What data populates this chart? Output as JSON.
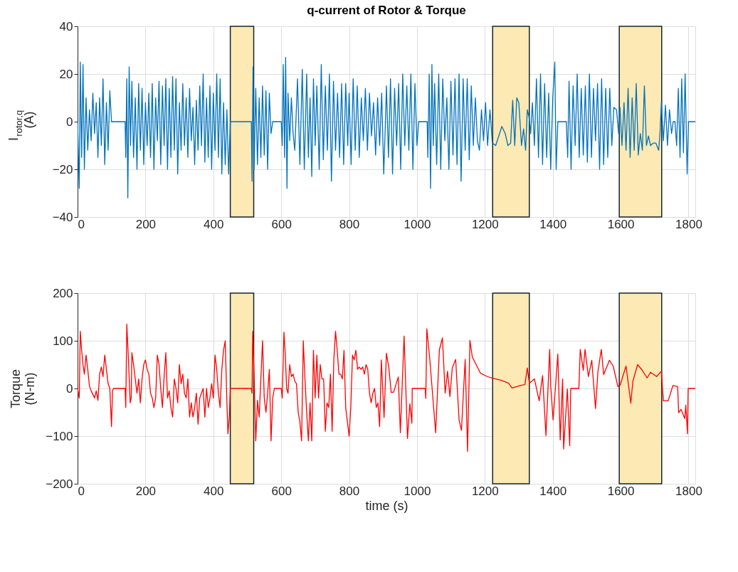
{
  "chart_data": [
    {
      "type": "line",
      "title": "q-current of Rotor & Torque",
      "ylabel": "I$_{rotor,q}$\n(A)",
      "xlim": [
        0,
        1820
      ],
      "xticks": [
        0,
        200,
        400,
        600,
        800,
        1000,
        1200,
        1400,
        1600,
        1800
      ],
      "ylim": [
        -40,
        40
      ],
      "yticks": [
        -40,
        -20,
        0,
        20,
        40
      ],
      "grid": true,
      "bands": [
        {
          "axis": "x",
          "from": 450,
          "to": 519,
          "color": "#fde9b3"
        },
        {
          "axis": "x",
          "from": 1223,
          "to": 1331,
          "color": "#fde9b3"
        },
        {
          "axis": "x",
          "from": 1596,
          "to": 1721,
          "color": "#fde9b3"
        }
      ],
      "series": [
        {
          "color": "#0072bd",
          "x": [
            0,
            5,
            8,
            12,
            16,
            20,
            25,
            30,
            35,
            40,
            45,
            50,
            55,
            60,
            65,
            70,
            75,
            80,
            85,
            90,
            95,
            100,
            140,
            142,
            145,
            148,
            152,
            156,
            160,
            165,
            170,
            175,
            180,
            185,
            190,
            195,
            200,
            205,
            210,
            215,
            220,
            225,
            230,
            235,
            240,
            245,
            250,
            255,
            260,
            265,
            270,
            275,
            280,
            285,
            290,
            295,
            300,
            305,
            310,
            315,
            320,
            325,
            330,
            335,
            340,
            345,
            350,
            355,
            360,
            365,
            370,
            375,
            380,
            385,
            390,
            395,
            400,
            405,
            410,
            415,
            420,
            425,
            430,
            435,
            440,
            445,
            450,
            512,
            514,
            517,
            520,
            525,
            530,
            535,
            540,
            545,
            550,
            555,
            560,
            565,
            570,
            575,
            600,
            603,
            606,
            610,
            613,
            617,
            620,
            625,
            630,
            635,
            640,
            648,
            655,
            662,
            668,
            675,
            680,
            685,
            690,
            695,
            700,
            705,
            712,
            718,
            724,
            730,
            736,
            742,
            748,
            754,
            760,
            766,
            772,
            778,
            784,
            790,
            796,
            800,
            806,
            812,
            818,
            824,
            830,
            836,
            842,
            848,
            854,
            860,
            866,
            872,
            878,
            884,
            890,
            896,
            902,
            906,
            910,
            916,
            922,
            928,
            934,
            940,
            946,
            952,
            958,
            964,
            970,
            976,
            982,
            988,
            994,
            1000,
            1005,
            1030,
            1032,
            1036,
            1040,
            1044,
            1048,
            1052,
            1058,
            1064,
            1070,
            1076,
            1082,
            1088,
            1094,
            1100,
            1106,
            1112,
            1118,
            1124,
            1130,
            1136,
            1142,
            1148,
            1154,
            1160,
            1166,
            1172,
            1178,
            1184,
            1190,
            1196,
            1202,
            1208,
            1215,
            1222,
            1232,
            1250,
            1260,
            1268,
            1276,
            1282,
            1288,
            1294,
            1300,
            1308,
            1314,
            1320,
            1325,
            1330,
            1335,
            1340,
            1346,
            1352,
            1358,
            1364,
            1370,
            1376,
            1382,
            1388,
            1394,
            1400,
            1406,
            1410,
            1415,
            1440,
            1444,
            1448,
            1454,
            1460,
            1466,
            1472,
            1478,
            1484,
            1490,
            1496,
            1502,
            1508,
            1514,
            1520,
            1526,
            1532,
            1538,
            1544,
            1550,
            1556,
            1562,
            1568,
            1574,
            1580,
            1588,
            1594,
            1598,
            1604,
            1610,
            1616,
            1622,
            1628,
            1634,
            1640,
            1646,
            1652,
            1658,
            1664,
            1670,
            1676,
            1682,
            1688,
            1696,
            1704,
            1712,
            1716,
            1720,
            1726,
            1732,
            1738,
            1744,
            1750,
            1755,
            1760,
            1765,
            1770,
            1775,
            1780,
            1785,
            1790,
            1796,
            1800,
            1820
          ],
          "values": [
            0,
            -28,
            25,
            -15,
            24,
            -20,
            10,
            -12,
            5,
            -8,
            12,
            -5,
            8,
            -15,
            10,
            -10,
            18,
            -18,
            8,
            -12,
            13,
            0,
            0,
            -15,
            18,
            -32,
            23,
            -10,
            17,
            -15,
            10,
            -20,
            16,
            -12,
            14,
            -18,
            8,
            -10,
            12,
            -15,
            16,
            -20,
            10,
            -8,
            17,
            -18,
            15,
            -10,
            18,
            -20,
            14,
            -15,
            19,
            -12,
            18,
            -22,
            8,
            -12,
            16,
            -10,
            10,
            -15,
            14,
            -8,
            6,
            -18,
            9,
            -12,
            15,
            -10,
            20,
            -17,
            10,
            -15,
            15,
            -20,
            12,
            -12,
            20,
            -15,
            18,
            -22,
            8,
            -18,
            5,
            -22,
            0,
            0,
            -25,
            23,
            -20,
            14,
            -18,
            10,
            -15,
            15,
            -14,
            13,
            -20,
            12,
            -5,
            0,
            0,
            -10,
            24,
            -15,
            27,
            -28,
            12,
            -8,
            10,
            -5,
            -12,
            18,
            -18,
            22,
            -20,
            20,
            -15,
            10,
            -23,
            18,
            -10,
            15,
            -20,
            24,
            -16,
            15,
            -12,
            20,
            -25,
            17,
            -12,
            12,
            -15,
            16,
            -18,
            16,
            -10,
            12,
            -18,
            18,
            -12,
            15,
            -15,
            10,
            -8,
            14,
            -12,
            12,
            -6,
            8,
            -14,
            10,
            -10,
            12,
            -22,
            -5,
            15,
            -15,
            18,
            -22,
            14,
            -10,
            16,
            -20,
            20,
            -10,
            15,
            -12,
            20,
            -20,
            16,
            -10,
            0,
            0,
            -15,
            20,
            -28,
            24,
            -10,
            16,
            -18,
            20,
            -20,
            18,
            -8,
            10,
            -20,
            17,
            -14,
            18,
            -18,
            20,
            -25,
            18,
            -12,
            18,
            -16,
            15,
            -10,
            10,
            -8,
            -12,
            5,
            -8,
            8,
            -10,
            5,
            -9,
            -10,
            -2,
            -5,
            -10,
            -9,
            9,
            -10,
            10,
            8,
            -10,
            -3,
            -12,
            5,
            2,
            -5,
            8,
            -10,
            18,
            -15,
            20,
            -18,
            16,
            -15,
            12,
            -20,
            10,
            25,
            -20,
            0,
            0,
            -15,
            17,
            -20,
            15,
            -10,
            20,
            -15,
            14,
            -14,
            15,
            -17,
            20,
            -15,
            14,
            -8,
            16,
            -20,
            18,
            -18,
            14,
            -15,
            14,
            -10,
            6,
            5,
            -5,
            6,
            -10,
            8,
            -12,
            14,
            -15,
            10,
            -12,
            16,
            -14,
            -5,
            -12,
            15,
            -10,
            -6,
            -10,
            -9,
            -9,
            -12,
            -5,
            8,
            -8,
            7,
            -10,
            5,
            -5,
            0,
            0,
            -10,
            14,
            -15,
            18,
            -13,
            20,
            -22,
            0,
            0
          ]
        }
      ]
    },
    {
      "type": "line",
      "xlabel": "time (s)",
      "ylabel": "Torque\n(N-m)",
      "xlim": [
        0,
        1820
      ],
      "xticks": [
        0,
        200,
        400,
        600,
        800,
        1000,
        1200,
        1400,
        1600,
        1800
      ],
      "ylim": [
        -200,
        200
      ],
      "yticks": [
        -200,
        -100,
        0,
        100,
        200
      ],
      "grid": true,
      "bands": [
        {
          "axis": "x",
          "from": 450,
          "to": 519,
          "color": "#fde9b3"
        },
        {
          "axis": "x",
          "from": 1223,
          "to": 1331,
          "color": "#fde9b3"
        },
        {
          "axis": "x",
          "from": 1596,
          "to": 1721,
          "color": "#fde9b3"
        }
      ],
      "series": [
        {
          "color": "#ff0000",
          "x": [
            0,
            5,
            8,
            12,
            16,
            20,
            25,
            30,
            35,
            40,
            50,
            55,
            60,
            65,
            70,
            75,
            80,
            85,
            90,
            95,
            100,
            103,
            106,
            140,
            142,
            145,
            150,
            155,
            158,
            160,
            165,
            170,
            175,
            180,
            185,
            190,
            195,
            200,
            205,
            210,
            215,
            220,
            225,
            230,
            235,
            240,
            245,
            250,
            255,
            260,
            265,
            270,
            275,
            280,
            285,
            290,
            295,
            300,
            305,
            310,
            315,
            320,
            325,
            330,
            335,
            340,
            345,
            350,
            355,
            360,
            365,
            370,
            375,
            380,
            385,
            390,
            395,
            400,
            405,
            410,
            415,
            420,
            425,
            430,
            435,
            440,
            443,
            447,
            450,
            512,
            514,
            516,
            520,
            525,
            530,
            535,
            540,
            545,
            550,
            555,
            560,
            565,
            570,
            575,
            580,
            600,
            603,
            608,
            612,
            616,
            620,
            625,
            630,
            635,
            640,
            645,
            650,
            655,
            660,
            665,
            670,
            675,
            680,
            685,
            690,
            695,
            700,
            705,
            710,
            715,
            720,
            725,
            730,
            735,
            740,
            745,
            750,
            755,
            760,
            765,
            770,
            775,
            780,
            785,
            790,
            795,
            800,
            805,
            810,
            815,
            820,
            825,
            830,
            835,
            840,
            845,
            850,
            855,
            860,
            865,
            870,
            875,
            880,
            885,
            890,
            895,
            903,
            910,
            917,
            924,
            931,
            945,
            951,
            962,
            972,
            979,
            985,
            986,
            1024,
            1026,
            1029,
            1038,
            1055,
            1066,
            1075,
            1083,
            1090,
            1097,
            1104,
            1114,
            1124,
            1131,
            1142,
            1149,
            1156,
            1163,
            1187,
            1207,
            1221,
            1249,
            1270,
            1280,
            1304,
            1318,
            1325,
            1331,
            1346,
            1360,
            1370,
            1380,
            1391,
            1394,
            1401,
            1415,
            1422,
            1429,
            1432,
            1443,
            1450,
            1453,
            1477,
            1481,
            1490,
            1495,
            1505,
            1515,
            1526,
            1533,
            1543,
            1550,
            1567,
            1578,
            1592,
            1598,
            1616,
            1630,
            1636,
            1650,
            1664,
            1678,
            1688,
            1706,
            1720,
            1726,
            1740,
            1754,
            1768,
            1771,
            1778,
            1789,
            1792,
            1797,
            1799,
            1820
          ],
          "values": [
            0,
            -20,
            120,
            80,
            50,
            30,
            70,
            40,
            5,
            -5,
            -20,
            -5,
            -25,
            30,
            45,
            25,
            70,
            40,
            10,
            0,
            -80,
            -5,
            0,
            0,
            -40,
            135,
            60,
            -30,
            -20,
            75,
            50,
            20,
            -10,
            20,
            -30,
            20,
            50,
            60,
            40,
            30,
            -10,
            -20,
            -40,
            -20,
            70,
            50,
            0,
            -40,
            25,
            75,
            -20,
            -5,
            -40,
            -60,
            20,
            0,
            -30,
            50,
            10,
            30,
            -10,
            -20,
            20,
            -60,
            -30,
            -60,
            -40,
            -10,
            -75,
            -20,
            -10,
            0,
            -60,
            0,
            -40,
            -20,
            10,
            -20,
            70,
            40,
            -10,
            -40,
            40,
            80,
            100,
            -30,
            -95,
            -60,
            0,
            0,
            -10,
            120,
            30,
            -110,
            -25,
            -60,
            20,
            100,
            -20,
            -50,
            -10,
            40,
            -110,
            -20,
            0,
            0,
            -20,
            118,
            70,
            0,
            -10,
            50,
            25,
            30,
            15,
            10,
            -50,
            -70,
            -110,
            100,
            20,
            -50,
            -110,
            -30,
            -110,
            80,
            -20,
            70,
            -20,
            50,
            20,
            20,
            -90,
            -30,
            -40,
            30,
            -90,
            60,
            120,
            80,
            30,
            30,
            20,
            80,
            -40,
            -70,
            -100,
            -40,
            70,
            60,
            80,
            40,
            45,
            40,
            45,
            30,
            50,
            40,
            -10,
            -30,
            -10,
            0,
            -40,
            -30,
            -80,
            60,
            -61,
            74,
            44,
            -8,
            -8,
            24,
            -93,
            110,
            -105,
            -32,
            -73,
            0,
            0,
            -21,
            125,
            59,
            -93,
            81,
            106,
            -10,
            36,
            -17,
            43,
            61,
            -66,
            -88,
            61,
            -132,
            101,
            66,
            32,
            25,
            22,
            17,
            11,
            1,
            6,
            8,
            43,
            11,
            20,
            -26,
            27,
            -99,
            82,
            6,
            -66,
            72,
            -108,
            20,
            -127,
            -1,
            -120,
            0,
            0,
            82,
            38,
            82,
            25,
            59,
            -42,
            34,
            82,
            29,
            59,
            47,
            4,
            6,
            47,
            -31,
            15,
            50,
            38,
            22,
            34,
            25,
            36,
            -26,
            -26,
            6,
            4,
            -51,
            -44,
            -63,
            -35,
            -95,
            0,
            0
          ]
        }
      ]
    }
  ]
}
